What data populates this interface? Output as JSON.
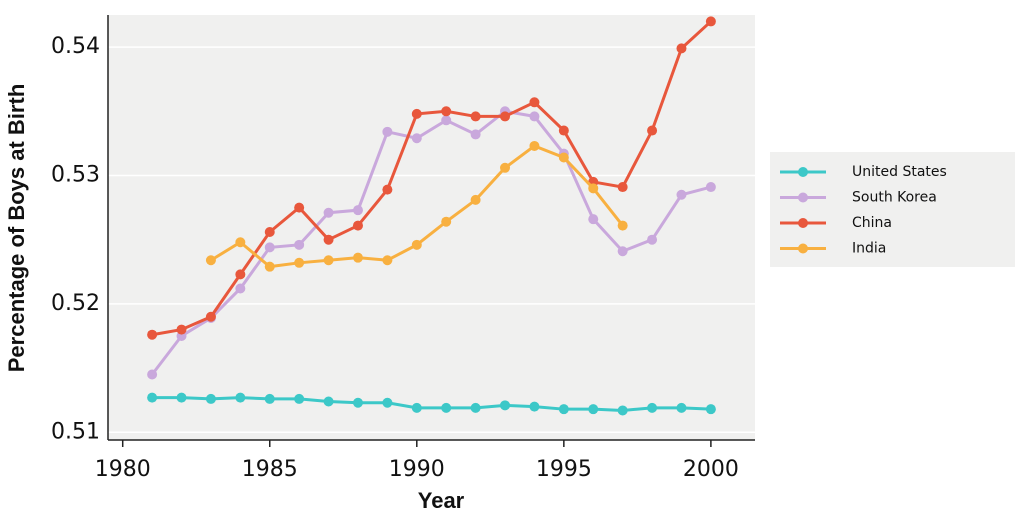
{
  "chart_data": {
    "type": "line",
    "xlabel": "Year",
    "ylabel": "Percentage of Boys at Birth",
    "x": [
      1981,
      1982,
      1983,
      1984,
      1985,
      1986,
      1987,
      1988,
      1989,
      1990,
      1991,
      1992,
      1993,
      1994,
      1995,
      1996,
      1997,
      1998,
      1999,
      2000
    ],
    "series": [
      {
        "name": "United States",
        "color": "#3cc8c8",
        "values": [
          0.5127,
          0.5127,
          0.5126,
          0.5127,
          0.5126,
          0.5126,
          0.5124,
          0.5123,
          0.5123,
          0.5119,
          0.5119,
          0.5119,
          0.5121,
          0.512,
          0.5118,
          0.5118,
          0.5117,
          0.5119,
          0.5119,
          0.5118
        ]
      },
      {
        "name": "South Korea",
        "color": "#c9a8dc",
        "values": [
          0.5145,
          0.5175,
          0.5189,
          0.5212,
          0.5244,
          0.5246,
          0.5271,
          0.5273,
          0.5334,
          0.5329,
          0.5343,
          0.5332,
          0.535,
          0.5346,
          0.5317,
          0.5266,
          0.5241,
          0.525,
          0.5285,
          0.5291
        ]
      },
      {
        "name": "China",
        "color": "#e8573c",
        "values": [
          0.5176,
          0.518,
          0.519,
          0.5223,
          0.5256,
          0.5275,
          0.525,
          0.5261,
          0.5289,
          0.5348,
          0.535,
          0.5346,
          0.5346,
          0.5357,
          0.5335,
          0.5295,
          0.5291,
          0.5335,
          0.5399,
          0.542
        ]
      },
      {
        "name": "India",
        "color": "#f8b040",
        "values": [
          null,
          null,
          0.5234,
          0.5248,
          0.5229,
          0.5232,
          0.5234,
          0.5236,
          0.5234,
          0.5246,
          0.5264,
          0.5281,
          0.5306,
          0.5323,
          0.5314,
          0.529,
          0.5261,
          null,
          null,
          null
        ]
      }
    ],
    "xlim": [
      1979.5,
      2001.5
    ],
    "xticks": [
      1980,
      1985,
      1990,
      1995,
      2000
    ],
    "ylim": [
      0.5094,
      0.5425
    ],
    "yticks": [
      0.51,
      0.52,
      0.53,
      0.54
    ],
    "grid": true,
    "legend": "right"
  }
}
